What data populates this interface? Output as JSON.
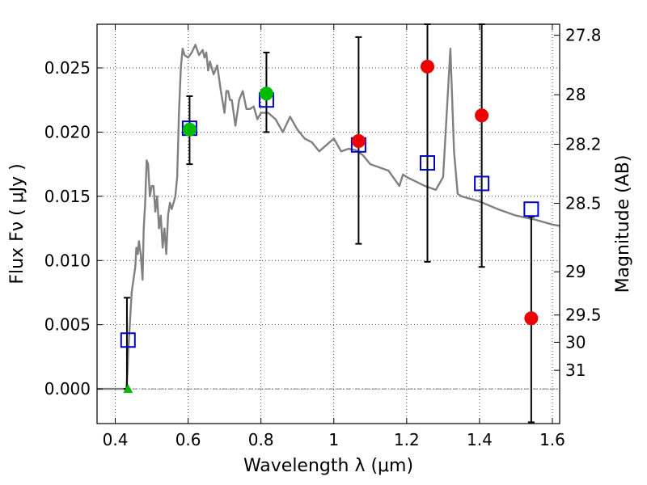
{
  "chart_data": {
    "type": "scatter",
    "xlabel": "Wavelength  λ (μm)",
    "ylabel": "Flux  Fν  ( μJy )",
    "y2label": "Magnitude (AB)",
    "xlim": [
      0.35,
      1.62
    ],
    "ylim": [
      -0.0027,
      0.0284
    ],
    "grid": true,
    "xticks": [
      0.4,
      0.6,
      0.8,
      1.0,
      1.2,
      1.4,
      1.6
    ],
    "xtick_labels": [
      "0.4",
      "0.6",
      "0.8",
      "1",
      "1.2",
      "1.4",
      "1.6"
    ],
    "yticks": [
      0.0,
      0.005,
      0.01,
      0.015,
      0.02,
      0.025
    ],
    "ytick_labels": [
      "0.000",
      "0.005",
      "0.010",
      "0.015",
      "0.020",
      "0.025"
    ],
    "y2ticks": [
      27.8,
      28,
      28.2,
      28.5,
      29,
      29.5,
      30,
      31
    ],
    "y2tick_labels": [
      "27.8",
      "28",
      "28.2",
      "28.5",
      "29",
      "29.5",
      "30",
      "31"
    ],
    "model_color": "#808080",
    "model_sed": {
      "x": [
        0.35,
        0.43,
        0.432,
        0.434,
        0.436,
        0.44,
        0.445,
        0.45,
        0.455,
        0.458,
        0.462,
        0.465,
        0.47,
        0.475,
        0.478,
        0.482,
        0.486,
        0.49,
        0.495,
        0.5,
        0.505,
        0.51,
        0.515,
        0.52,
        0.525,
        0.53,
        0.535,
        0.54,
        0.545,
        0.55,
        0.555,
        0.56,
        0.565,
        0.57,
        0.575,
        0.58,
        0.585,
        0.59,
        0.6,
        0.61,
        0.62,
        0.63,
        0.64,
        0.645,
        0.65,
        0.655,
        0.66,
        0.67,
        0.68,
        0.69,
        0.7,
        0.705,
        0.71,
        0.715,
        0.72,
        0.73,
        0.74,
        0.75,
        0.76,
        0.77,
        0.78,
        0.79,
        0.8,
        0.82,
        0.84,
        0.86,
        0.88,
        0.9,
        0.92,
        0.94,
        0.96,
        0.98,
        1.0,
        1.02,
        1.04,
        1.06,
        1.08,
        1.1,
        1.12,
        1.15,
        1.18,
        1.19,
        1.2,
        1.25,
        1.28,
        1.3,
        1.32,
        1.33,
        1.34,
        1.35,
        1.4,
        1.45,
        1.5,
        1.55,
        1.6,
        1.62
      ],
      "y": [
        0.0,
        0.0,
        0.0005,
        0.0015,
        0.003,
        0.005,
        0.0075,
        0.0085,
        0.0095,
        0.011,
        0.0105,
        0.0115,
        0.0105,
        0.0085,
        0.0125,
        0.0145,
        0.0178,
        0.0175,
        0.015,
        0.0158,
        0.0158,
        0.0138,
        0.015,
        0.0125,
        0.0135,
        0.011,
        0.0125,
        0.0105,
        0.0135,
        0.0145,
        0.014,
        0.0145,
        0.015,
        0.0165,
        0.0215,
        0.025,
        0.0265,
        0.026,
        0.0258,
        0.0262,
        0.0268,
        0.026,
        0.0264,
        0.0258,
        0.0262,
        0.0248,
        0.0255,
        0.0245,
        0.0252,
        0.0232,
        0.0215,
        0.0232,
        0.0232,
        0.0225,
        0.0225,
        0.0205,
        0.0225,
        0.0232,
        0.0218,
        0.0218,
        0.022,
        0.021,
        0.0215,
        0.0215,
        0.021,
        0.02,
        0.0212,
        0.0202,
        0.0195,
        0.0192,
        0.0185,
        0.019,
        0.0195,
        0.0185,
        0.0187,
        0.0186,
        0.0182,
        0.0175,
        0.0173,
        0.017,
        0.0158,
        0.0167,
        0.0165,
        0.0158,
        0.0155,
        0.0165,
        0.0265,
        0.0185,
        0.0152,
        0.015,
        0.0146,
        0.014,
        0.0135,
        0.0132,
        0.0128,
        0.0127
      ]
    },
    "errorbars": [
      {
        "x": 0.432,
        "ymin": 0.0,
        "ymax": 0.0071
      },
      {
        "x": 0.604,
        "ymin": 0.0175,
        "ymax": 0.0228
      },
      {
        "x": 0.815,
        "ymin": 0.02,
        "ymax": 0.0262
      },
      {
        "x": 1.068,
        "ymin": 0.0113,
        "ymax": 0.0274
      },
      {
        "x": 1.257,
        "ymin": 0.0099,
        "ymax": 0.0284
      },
      {
        "x": 1.406,
        "ymin": 0.0095,
        "ymax": 0.0284
      },
      {
        "x": 1.542,
        "ymin": -0.0026,
        "ymax": 0.0134
      }
    ],
    "observed_detected": {
      "color": "#00bb00",
      "x": [
        0.604,
        0.815
      ],
      "y": [
        0.0202,
        0.023
      ]
    },
    "observed_upper": {
      "color": "#ee0000",
      "x": [
        1.068,
        1.257,
        1.406,
        1.542
      ],
      "y": [
        0.0193,
        0.0251,
        0.0213,
        0.0055
      ]
    },
    "nondetection": {
      "color": "#00bb00",
      "x": [
        0.435
      ],
      "y": [
        0.0
      ]
    },
    "model_photometry": {
      "color": "#0000cc",
      "x": [
        0.435,
        0.604,
        0.815,
        1.068,
        1.257,
        1.406,
        1.542
      ],
      "y": [
        0.0038,
        0.0203,
        0.0225,
        0.019,
        0.0176,
        0.016,
        0.014
      ]
    }
  }
}
